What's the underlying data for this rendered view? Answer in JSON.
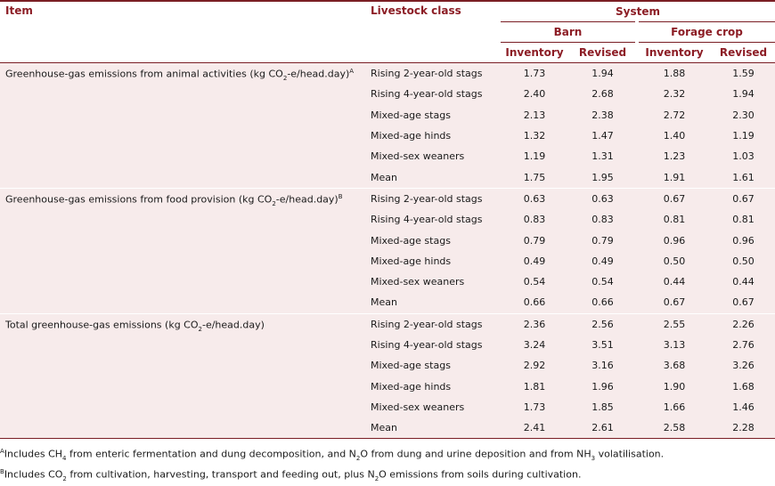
{
  "headers": {
    "item": "Item",
    "livestock_class": "Livestock class",
    "system": "System",
    "barn": "Barn",
    "forage_crop": "Forage crop",
    "inventory": "Inventory",
    "revised": "Revised"
  },
  "groups": [
    {
      "label_pre": "Greenhouse-gas emissions from animal activities (kg CO",
      "label_sub": "2",
      "label_post": "-e/head.day)",
      "label_sup": "A",
      "rows": [
        {
          "cls": "Rising 2-year-old stags",
          "v": [
            "1.73",
            "1.94",
            "1.88",
            "1.59"
          ]
        },
        {
          "cls": "Rising 4-year-old stags",
          "v": [
            "2.40",
            "2.68",
            "2.32",
            "1.94"
          ]
        },
        {
          "cls": "Mixed-age stags",
          "v": [
            "2.13",
            "2.38",
            "2.72",
            "2.30"
          ]
        },
        {
          "cls": "Mixed-age hinds",
          "v": [
            "1.32",
            "1.47",
            "1.40",
            "1.19"
          ]
        },
        {
          "cls": "Mixed-sex weaners",
          "v": [
            "1.19",
            "1.31",
            "1.23",
            "1.03"
          ]
        },
        {
          "cls": "Mean",
          "v": [
            "1.75",
            "1.95",
            "1.91",
            "1.61"
          ]
        }
      ]
    },
    {
      "label_pre": "Greenhouse-gas emissions from food provision (kg CO",
      "label_sub": "2",
      "label_post": "-e/head.day)",
      "label_sup": "B",
      "rows": [
        {
          "cls": "Rising 2-year-old stags",
          "v": [
            "0.63",
            "0.63",
            "0.67",
            "0.67"
          ]
        },
        {
          "cls": "Rising 4-year-old stags",
          "v": [
            "0.83",
            "0.83",
            "0.81",
            "0.81"
          ]
        },
        {
          "cls": "Mixed-age stags",
          "v": [
            "0.79",
            "0.79",
            "0.96",
            "0.96"
          ]
        },
        {
          "cls": "Mixed-age hinds",
          "v": [
            "0.49",
            "0.49",
            "0.50",
            "0.50"
          ]
        },
        {
          "cls": "Mixed-sex weaners",
          "v": [
            "0.54",
            "0.54",
            "0.44",
            "0.44"
          ]
        },
        {
          "cls": "Mean",
          "v": [
            "0.66",
            "0.66",
            "0.67",
            "0.67"
          ]
        }
      ]
    },
    {
      "label_pre": "Total greenhouse-gas emissions (kg CO",
      "label_sub": "2",
      "label_post": "-e/head.day)",
      "label_sup": "",
      "rows": [
        {
          "cls": "Rising 2-year-old stags",
          "v": [
            "2.36",
            "2.56",
            "2.55",
            "2.26"
          ]
        },
        {
          "cls": "Rising 4-year-old stags",
          "v": [
            "3.24",
            "3.51",
            "3.13",
            "2.76"
          ]
        },
        {
          "cls": "Mixed-age stags",
          "v": [
            "2.92",
            "3.16",
            "3.68",
            "3.26"
          ]
        },
        {
          "cls": "Mixed-age hinds",
          "v": [
            "1.81",
            "1.96",
            "1.90",
            "1.68"
          ]
        },
        {
          "cls": "Mixed-sex weaners",
          "v": [
            "1.73",
            "1.85",
            "1.66",
            "1.46"
          ]
        },
        {
          "cls": "Mean",
          "v": [
            "2.41",
            "2.61",
            "2.58",
            "2.28"
          ]
        }
      ]
    }
  ],
  "footnotes": {
    "a": {
      "mark": "A",
      "p1": "Includes CH",
      "s1": "4",
      "p2": " from enteric fermentation and dung decomposition, and N",
      "s2": "2",
      "p3": "O from dung and urine deposition and from NH",
      "s3": "3",
      "p4": " volatilisation."
    },
    "b": {
      "mark": "B",
      "p1": "Includes CO",
      "s1": "2",
      "p2": " from cultivation, harvesting, transport and feeding out, plus N",
      "s2": "2",
      "p3": "O emissions from soils during cultivation."
    }
  },
  "colors": {
    "header_text": "#8c1d25",
    "rule": "#7a1e24",
    "shade": "#f7ebeb"
  }
}
